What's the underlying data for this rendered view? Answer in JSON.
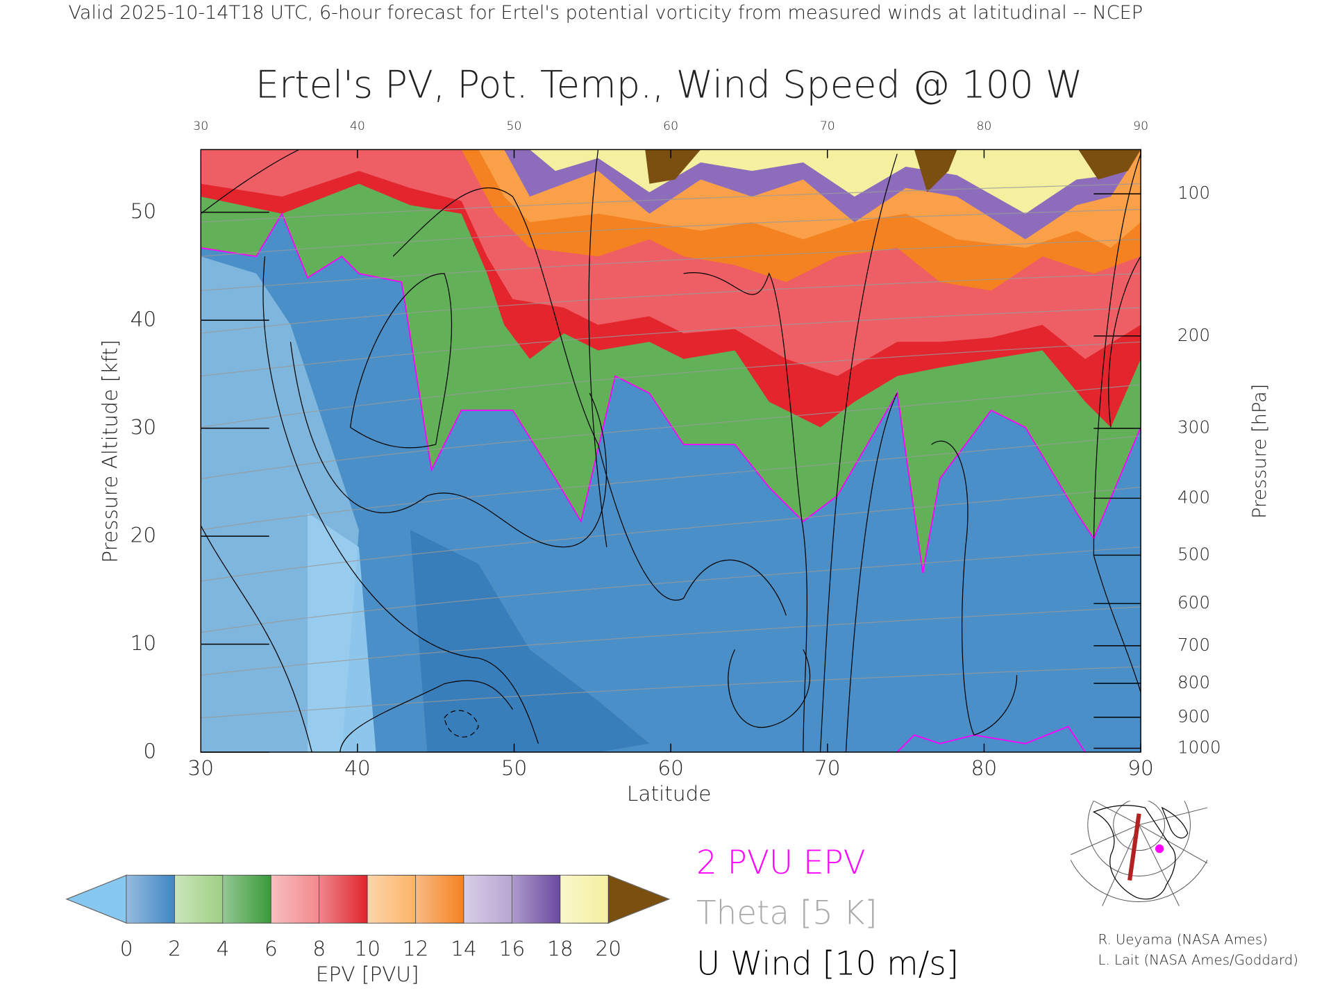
{
  "chart_data": {
    "type": "contour",
    "subtitle": "Valid 2025-10-14T18 UTC, 6-hour forecast for Ertel's potential vorticity from measured winds at latitudinal -- NCEP",
    "title": "Ertel's PV, Pot. Temp., Wind Speed @ 100 W",
    "xlabel": "Latitude",
    "ylabel": "Pressure Altitude [kft]",
    "y2label": "Pressure [hPa]",
    "xlim": [
      30,
      90
    ],
    "xticks": [
      30,
      40,
      50,
      60,
      70,
      80,
      90
    ],
    "ylim": [
      0,
      55.8
    ],
    "yticks": [
      0,
      10,
      20,
      30,
      40,
      50
    ],
    "y2lim": [
      1013,
      79
    ],
    "y2scale": "pressure-altitude",
    "y2ticks": [
      100,
      200,
      300,
      400,
      500,
      600,
      700,
      800,
      900,
      1000
    ],
    "colorbar": {
      "label": "EPV [PVU]",
      "clim": [
        0,
        20
      ],
      "ticks": [
        0,
        2,
        4,
        6,
        8,
        10,
        12,
        14,
        16,
        18,
        20
      ],
      "colors": [
        "#3f86c4",
        "#9fd083",
        "#3a9a3a",
        "#f3898c",
        "#e0252b",
        "#fbb466",
        "#f58220",
        "#b8a6d3",
        "#6a4aa0",
        "#f5f0a0"
      ],
      "under_color": "#87c8f0",
      "over_color": "#7b4f0f"
    },
    "legend": [
      {
        "label": "2 PVU EPV",
        "color": "#ff00ff"
      },
      {
        "label": "Theta [5 K]",
        "color": "#aaaaaa"
      },
      {
        "label": "U Wind [10 m/s]",
        "color": "#000000"
      }
    ]
  },
  "credits": [
    "R. Ueyama (NASA Ames)",
    "L. Lait (NASA Ames/Goddard)"
  ]
}
